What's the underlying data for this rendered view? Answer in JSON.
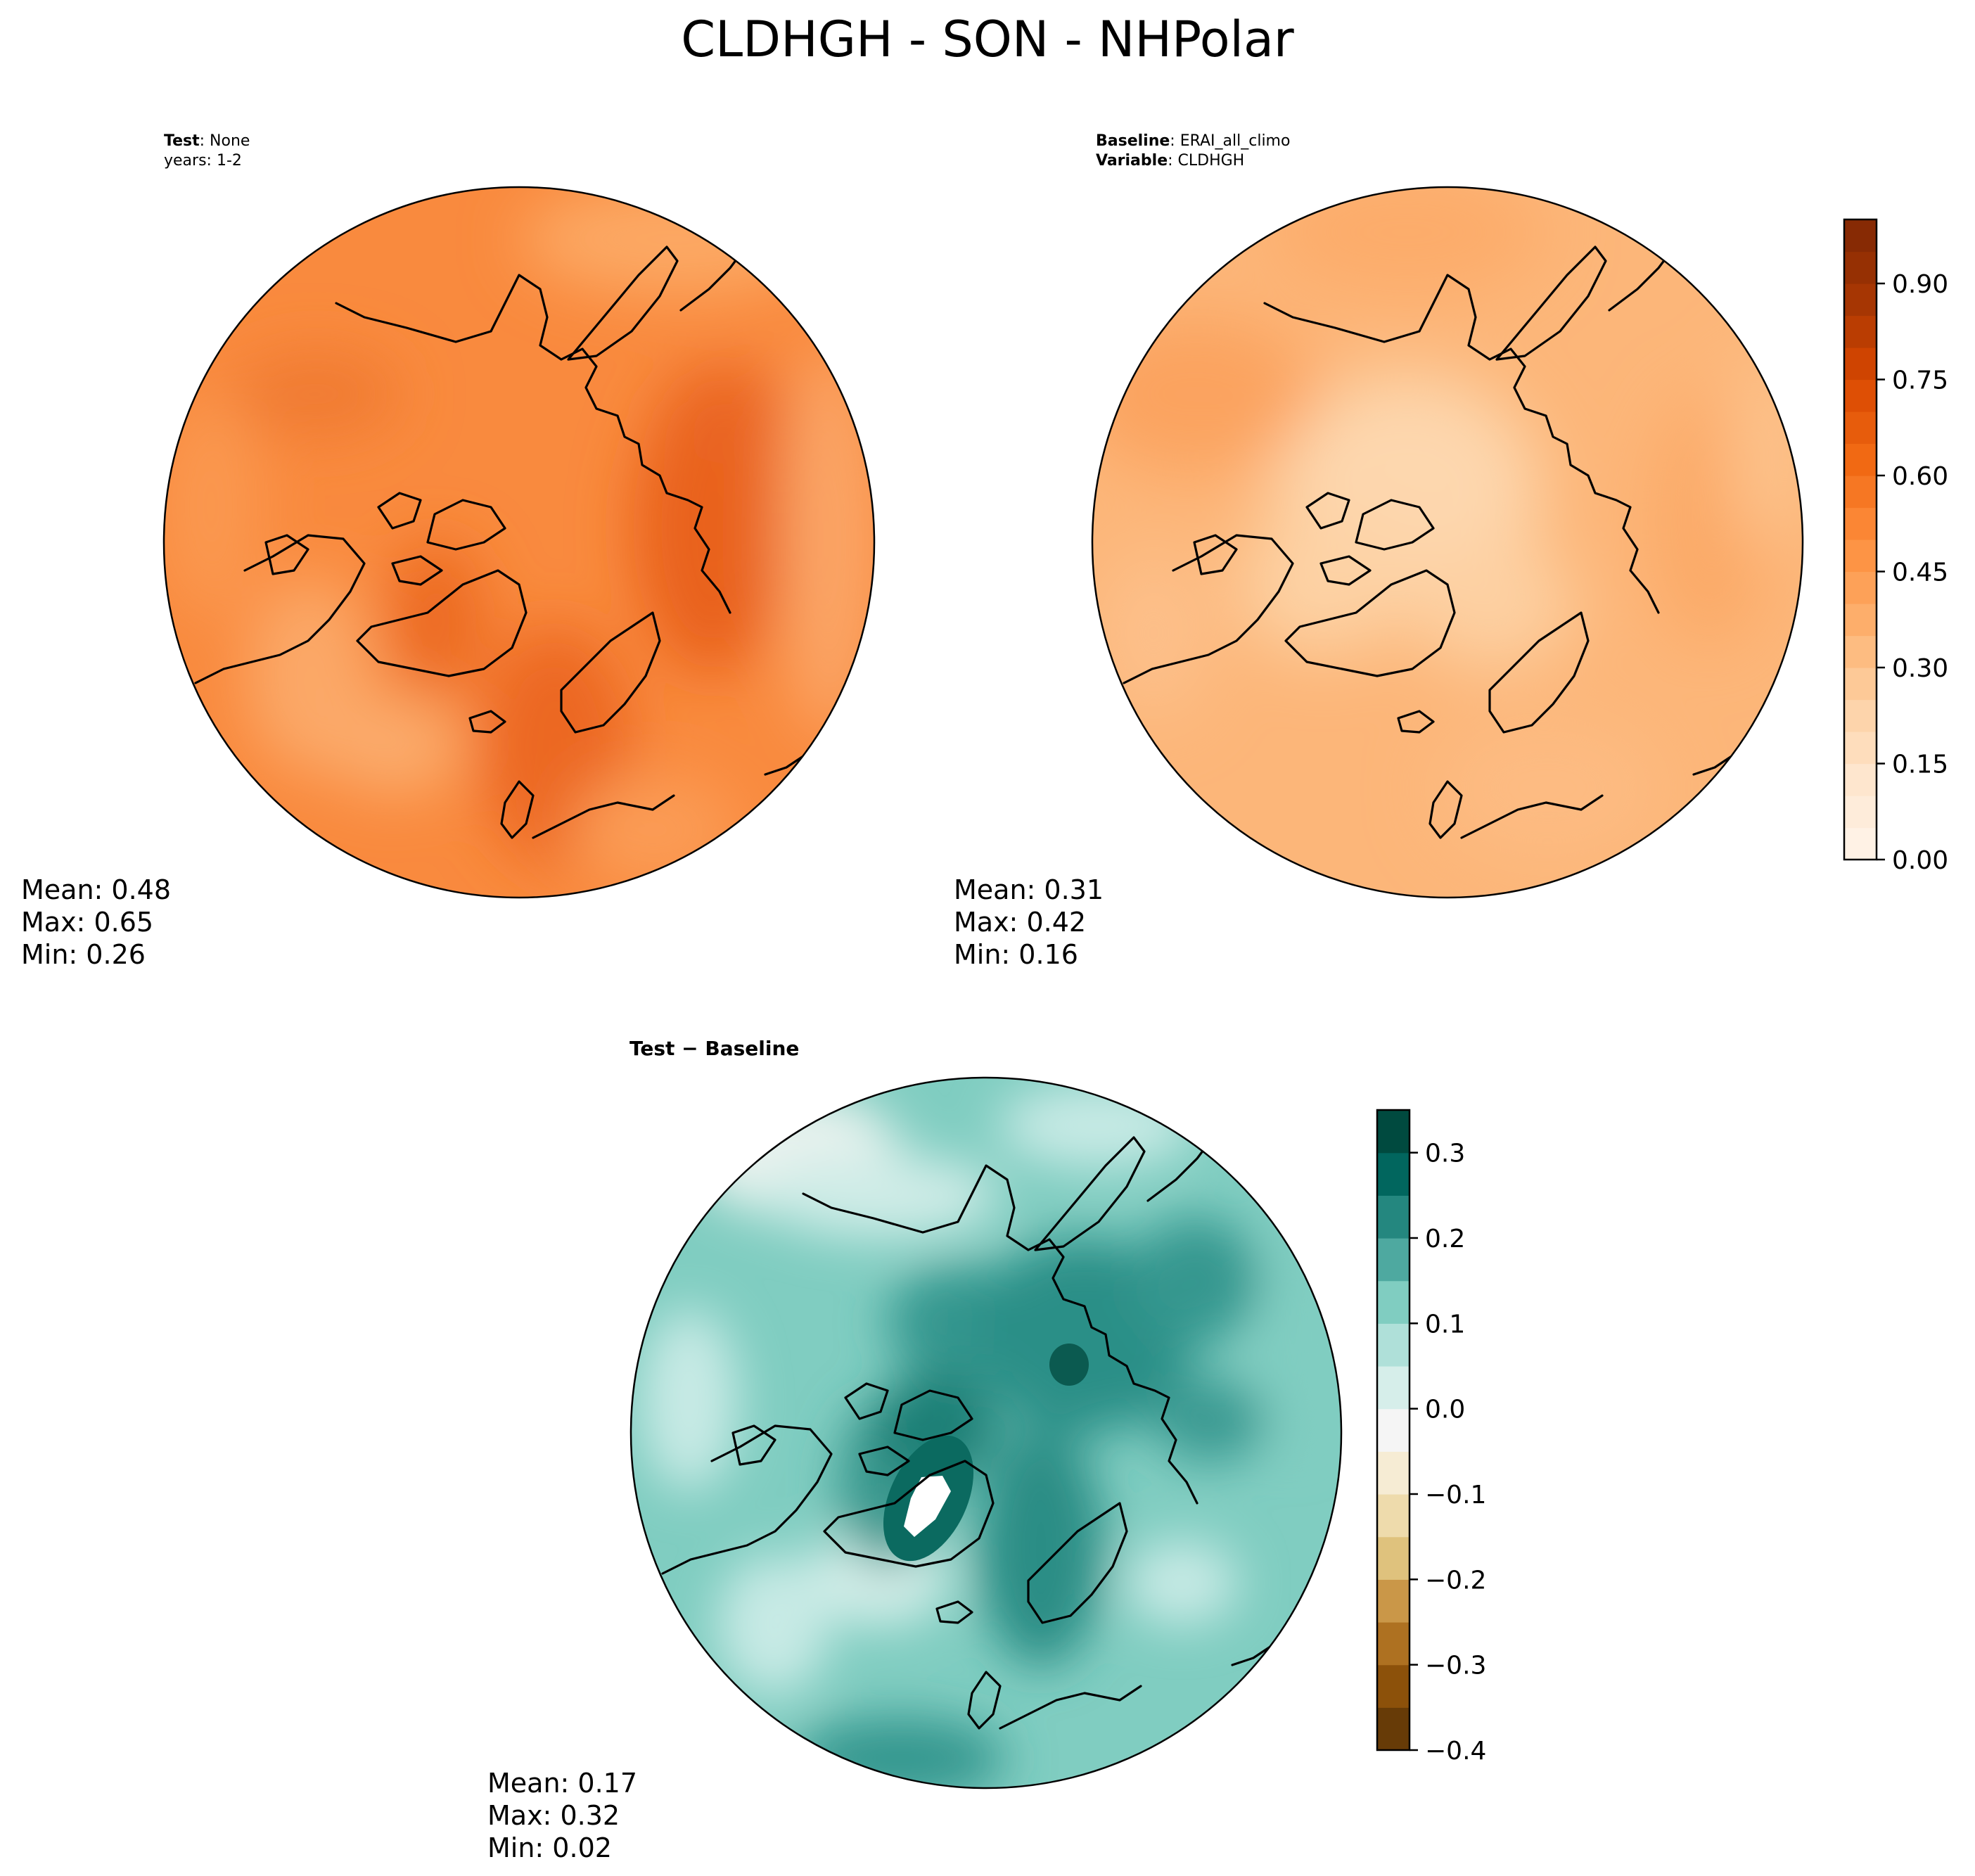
{
  "title": "CLDHGH - SON - NHPolar",
  "colors": {
    "oranges_cmap": [
      "#fff5eb",
      "#fee6ce",
      "#fdd0a2",
      "#fdae6b",
      "#fd8d3c",
      "#f16913",
      "#d94801",
      "#a63603",
      "#7f2704"
    ],
    "brbg_cmap": [
      "#543005",
      "#8c510a",
      "#bf812d",
      "#dfc27d",
      "#f6e8c3",
      "#f5f5f5",
      "#c7eae5",
      "#80cdc1",
      "#35978f",
      "#01665e",
      "#003c30"
    ],
    "coast": "#000000"
  },
  "chart_data": [
    {
      "type": "heatmap",
      "panel": "test",
      "projection": "north-polar-stereographic",
      "header_bold": "Test",
      "header_value": ": None",
      "header_line2": "years: 1-2",
      "stats": {
        "mean": "Mean:  0.48",
        "max": "Max:  0.65",
        "min": "Min:  0.26"
      },
      "mean": 0.48,
      "max": 0.65,
      "min": 0.26
    },
    {
      "type": "heatmap",
      "panel": "baseline",
      "projection": "north-polar-stereographic",
      "header_bold": "Baseline",
      "header_value": ": ERAI_all_climo",
      "header_bold2": "Variable",
      "header_value2": ": CLDHGH",
      "stats": {
        "mean": "Mean:  0.31",
        "max": "Max:  0.42",
        "min": "Min:  0.16"
      },
      "mean": 0.31,
      "max": 0.42,
      "min": 0.16,
      "colorbar": {
        "range": [
          0.0,
          1.0
        ],
        "ticks": [
          0.0,
          0.15,
          0.3,
          0.45,
          0.6,
          0.75,
          0.9
        ],
        "tick_labels": [
          "0.00",
          "0.15",
          "0.30",
          "0.45",
          "0.60",
          "0.75",
          "0.90"
        ]
      }
    },
    {
      "type": "heatmap",
      "panel": "difference",
      "projection": "north-polar-stereographic",
      "header_bold": "Test − Baseline",
      "stats": {
        "mean": "Mean:  0.17",
        "max": "Max:  0.32",
        "min": "Min:  0.02"
      },
      "mean": 0.17,
      "max": 0.32,
      "min": 0.02,
      "colorbar": {
        "range": [
          -0.4,
          0.35
        ],
        "ticks": [
          -0.4,
          -0.3,
          -0.2,
          -0.1,
          0.0,
          0.1,
          0.2,
          0.3
        ],
        "tick_labels": [
          "−0.4",
          "−0.3",
          "−0.2",
          "−0.1",
          "0.0",
          "0.1",
          "0.2",
          "0.3"
        ]
      }
    }
  ]
}
